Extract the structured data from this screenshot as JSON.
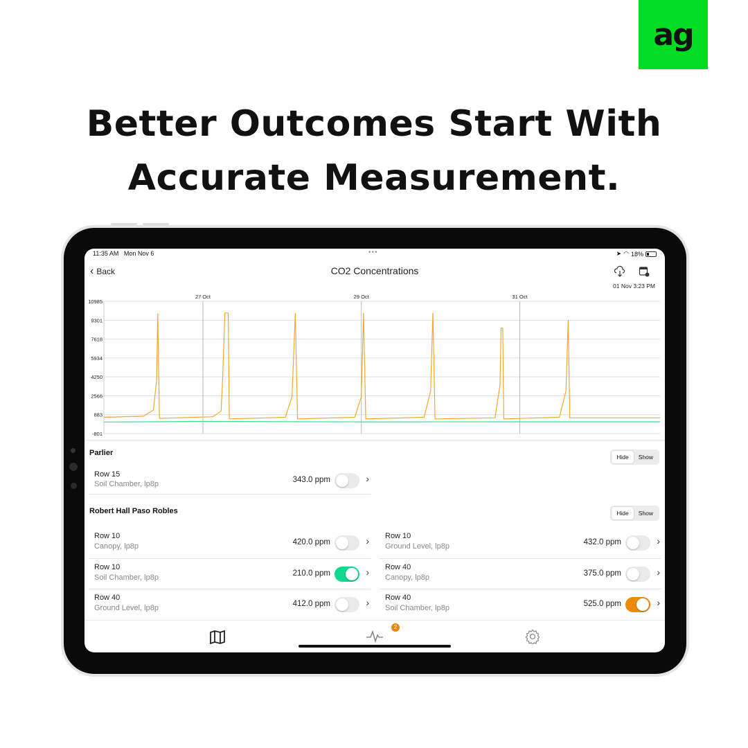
{
  "brand": {
    "logo_text": "ag",
    "color": "#00dd22"
  },
  "headline": {
    "line1": "Better Outcomes Start With",
    "line2": "Accurate Measurement."
  },
  "status_bar": {
    "time": "11:35 AM",
    "date": "Mon Nov 6",
    "battery": "18%"
  },
  "nav": {
    "back_label": "Back",
    "title": "CO2 Concentrations",
    "timestamp": "01 Nov 3:23 PM",
    "icons": [
      "cloud-download-icon",
      "calendar-icon"
    ]
  },
  "colors": {
    "orange": "#f0a830",
    "green": "#3ddc97",
    "toggle_green": "#10d98f",
    "toggle_orange": "#ec8a0c",
    "badge": "#e8850c"
  },
  "chart_data": {
    "type": "line",
    "yticks": [
      "10985",
      "9301",
      "7618",
      "5934",
      "4250",
      "2566",
      "883",
      "-801"
    ],
    "ylim": [
      -801,
      10985
    ],
    "xlim": [
      "10-25T18:00",
      "11-01T18:30"
    ],
    "xticks": [
      {
        "label": "27 Oct",
        "x": "10-27T00:00"
      },
      {
        "label": "29 Oct",
        "x": "10-29T00:00"
      },
      {
        "label": "31 Oct",
        "x": "10-31T00:00"
      }
    ],
    "grid": true,
    "series": [
      {
        "color": "#f0a830",
        "points": [
          [
            "10-25T18:00",
            650
          ],
          [
            "10-26T06:00",
            750
          ],
          [
            "10-26T09:00",
            1300
          ],
          [
            "10-26T10:00",
            4000
          ],
          [
            "10-26T10:20",
            9900
          ],
          [
            "10-26T10:50",
            550
          ],
          [
            "10-27T03:00",
            700
          ],
          [
            "10-27T05:30",
            1200
          ],
          [
            "10-27T06:00",
            4300
          ],
          [
            "10-27T06:40",
            9950
          ],
          [
            "10-27T07:40",
            9950
          ],
          [
            "10-27T08:00",
            500
          ],
          [
            "10-28T01:00",
            650
          ],
          [
            "10-28T03:00",
            2500
          ],
          [
            "10-28T04:00",
            9950
          ],
          [
            "10-28T04:40",
            500
          ],
          [
            "10-28T22:00",
            650
          ],
          [
            "10-29T00:00",
            2500
          ],
          [
            "10-29T00:40",
            9950
          ],
          [
            "10-29T01:20",
            500
          ],
          [
            "10-29T19:00",
            650
          ],
          [
            "10-29T21:00",
            3000
          ],
          [
            "10-29T21:40",
            9950
          ],
          [
            "10-29T22:20",
            500
          ],
          [
            "10-30T16:30",
            600
          ],
          [
            "10-30T18:00",
            3500
          ],
          [
            "10-30T18:20",
            8600
          ],
          [
            "10-30T18:50",
            8600
          ],
          [
            "10-30T19:10",
            500
          ],
          [
            "10-31T12:00",
            650
          ],
          [
            "10-31T14:00",
            3000
          ],
          [
            "10-31T14:40",
            9350
          ],
          [
            "10-31T15:10",
            600
          ],
          [
            "11-01T18:30",
            600
          ]
        ]
      },
      {
        "color": "#3ddc97",
        "points": [
          [
            "10-25T18:00",
            230
          ],
          [
            "10-27T00:00",
            280
          ],
          [
            "10-29T00:00",
            240
          ],
          [
            "10-31T00:00",
            250
          ],
          [
            "11-01T18:30",
            250
          ]
        ]
      }
    ]
  },
  "segment": {
    "hide": "Hide",
    "show": "Show"
  },
  "sections": [
    {
      "title": "Parlier",
      "items": [
        {
          "row": "Row 15",
          "sub": "Soil Chamber, lp8p",
          "value": "343.0 ppm",
          "on": false
        }
      ]
    },
    {
      "title": "Robert Hall Paso Robles",
      "items": [
        {
          "row": "Row 10",
          "sub": "Canopy, lp8p",
          "value": "420.0 ppm",
          "on": false
        },
        {
          "row": "Row 10",
          "sub": "Ground Level, lp8p",
          "value": "432.0 ppm",
          "on": false
        },
        {
          "row": "Row 10",
          "sub": "Soil Chamber, lp8p",
          "value": "210.0 ppm",
          "on": true,
          "color": "#10d98f"
        },
        {
          "row": "Row 40",
          "sub": "Canopy, lp8p",
          "value": "375.0 ppm",
          "on": false
        },
        {
          "row": "Row 40",
          "sub": "Ground Level, lp8p",
          "value": "412.0 ppm",
          "on": false
        },
        {
          "row": "Row 40",
          "sub": "Soil Chamber, lp8p",
          "value": "525.0 ppm",
          "on": true,
          "color": "#ec8a0c"
        }
      ]
    }
  ],
  "tabbar": {
    "tabs": [
      "map-icon",
      "activity-icon",
      "settings-icon"
    ],
    "badge": "2"
  }
}
